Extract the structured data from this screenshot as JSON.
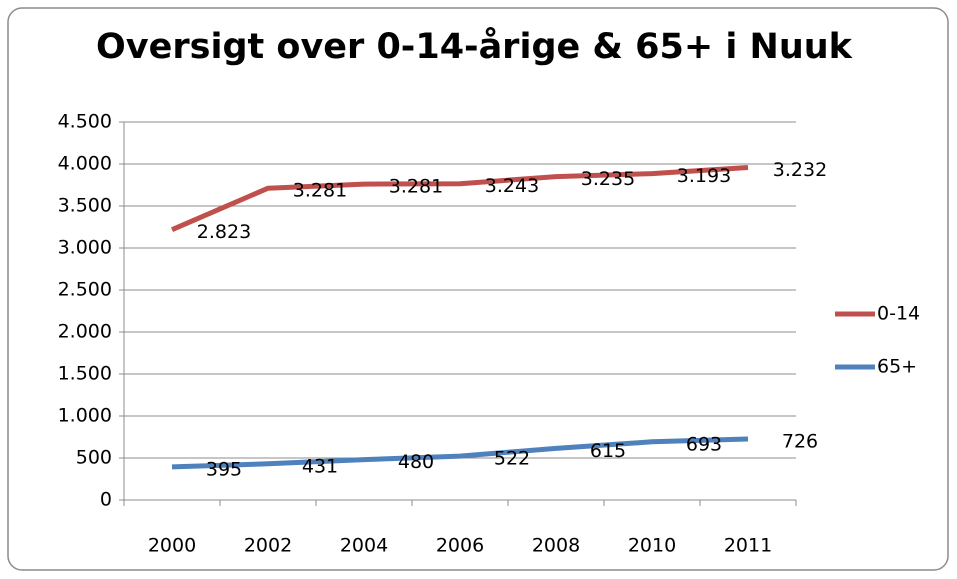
{
  "chart_data": {
    "type": "line",
    "stacked": true,
    "title": "Oversigt over 0-14-årige & 65+ i Nuuk",
    "categories": [
      "2000",
      "2002",
      "2004",
      "2006",
      "2008",
      "2010",
      "2011"
    ],
    "series": [
      {
        "name": "0-14",
        "color": "#c0504d",
        "values": [
          2823,
          3281,
          3281,
          3243,
          3235,
          3193,
          3232
        ],
        "value_labels": [
          "2.823",
          "3.281",
          "3.281",
          "3.243",
          "3.235",
          "3.193",
          "3.232"
        ]
      },
      {
        "name": "65+",
        "color": "#4f81bd",
        "values": [
          395,
          431,
          480,
          522,
          615,
          693,
          726
        ]
      }
    ],
    "ylim": [
      0,
      4500
    ],
    "yticks": [
      0,
      500,
      {
        "value": 1000,
        "label": "1.000"
      },
      {
        "value": 1500,
        "label": "1.500"
      },
      {
        "value": 2000,
        "label": "2.000"
      },
      {
        "value": 2500,
        "label": "2.500"
      },
      {
        "value": 3000,
        "label": "3.000"
      },
      {
        "value": 3500,
        "label": "3.500"
      },
      {
        "value": 4000,
        "label": "4.000"
      },
      {
        "value": 4500,
        "label": "4.500"
      }
    ],
    "grid": true,
    "legend": "right"
  }
}
